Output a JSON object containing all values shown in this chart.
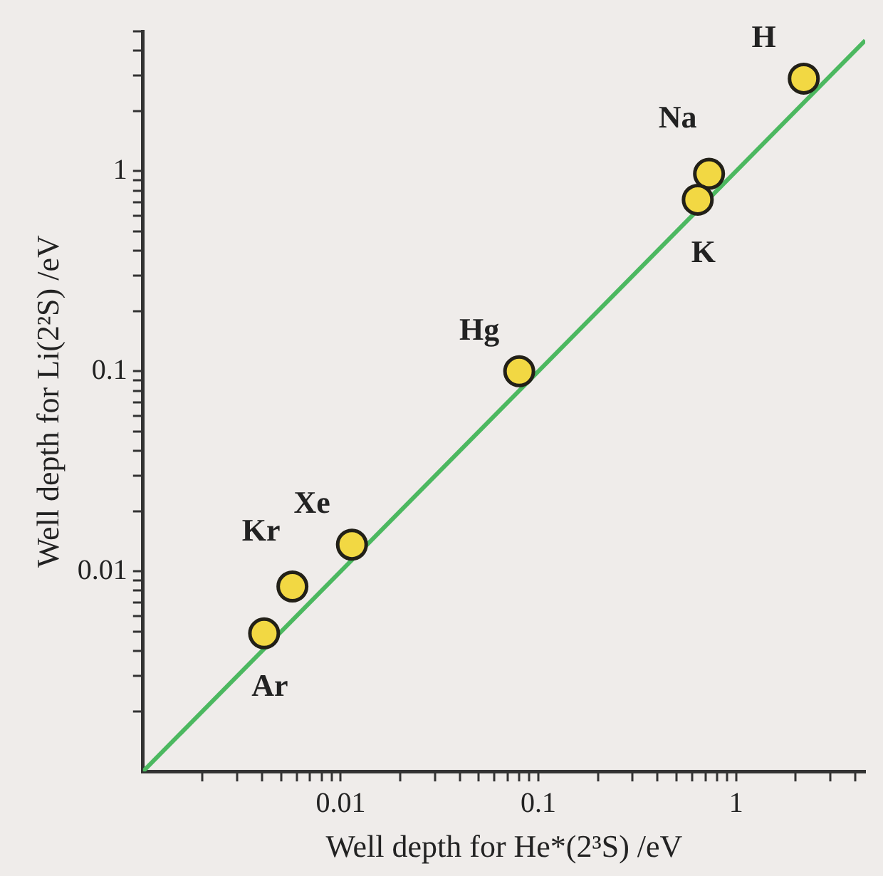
{
  "chart_data": {
    "type": "scatter",
    "xlabel": "Well depth for He*(2³S) /eV",
    "ylabel": "Well depth for Li(2²S) /eV",
    "log": "xy",
    "grid": false,
    "legend": false,
    "marker": "circle",
    "xlim": [
      0.001,
      4.5
    ],
    "ylim": [
      0.001,
      5
    ],
    "xticks": [
      {
        "value": 0.002,
        "label": null
      },
      {
        "value": 0.003,
        "label": null
      },
      {
        "value": 0.004,
        "label": null
      },
      {
        "value": 0.005,
        "label": null
      },
      {
        "value": 0.006,
        "label": null
      },
      {
        "value": 0.007,
        "label": null
      },
      {
        "value": 0.008,
        "label": null
      },
      {
        "value": 0.009,
        "label": null
      },
      0.01,
      {
        "value": 0.02,
        "label": null
      },
      {
        "value": 0.03,
        "label": null
      },
      {
        "value": 0.04,
        "label": null
      },
      {
        "value": 0.05,
        "label": null
      },
      {
        "value": 0.06,
        "label": null
      },
      {
        "value": 0.07,
        "label": null
      },
      {
        "value": 0.08,
        "label": null
      },
      {
        "value": 0.09,
        "label": null
      },
      0.1,
      {
        "value": 0.2,
        "label": null
      },
      {
        "value": 0.3,
        "label": null
      },
      {
        "value": 0.4,
        "label": null
      },
      {
        "value": 0.5,
        "label": null
      },
      {
        "value": 0.6,
        "label": null
      },
      {
        "value": 0.7,
        "label": null
      },
      {
        "value": 0.8,
        "label": null
      },
      {
        "value": 0.9,
        "label": null
      },
      1,
      {
        "value": 2,
        "label": null
      },
      {
        "value": 3,
        "label": null
      },
      {
        "value": 4,
        "label": null
      }
    ],
    "yticks": [
      {
        "value": 0.002,
        "label": null
      },
      {
        "value": 0.003,
        "label": null
      },
      {
        "value": 0.004,
        "label": null
      },
      {
        "value": 0.005,
        "label": null
      },
      {
        "value": 0.006,
        "label": null
      },
      {
        "value": 0.007,
        "label": null
      },
      {
        "value": 0.008,
        "label": null
      },
      {
        "value": 0.009,
        "label": null
      },
      0.01,
      {
        "value": 0.02,
        "label": null
      },
      {
        "value": 0.03,
        "label": null
      },
      {
        "value": 0.04,
        "label": null
      },
      {
        "value": 0.05,
        "label": null
      },
      {
        "value": 0.06,
        "label": null
      },
      {
        "value": 0.07,
        "label": null
      },
      {
        "value": 0.08,
        "label": null
      },
      {
        "value": 0.09,
        "label": null
      },
      0.1,
      {
        "value": 0.2,
        "label": null
      },
      {
        "value": 0.3,
        "label": null
      },
      {
        "value": 0.4,
        "label": null
      },
      {
        "value": 0.5,
        "label": null
      },
      {
        "value": 0.6,
        "label": null
      },
      {
        "value": 0.7,
        "label": null
      },
      {
        "value": 0.8,
        "label": null
      },
      {
        "value": 0.9,
        "label": null
      },
      1,
      {
        "value": 2,
        "label": null
      },
      {
        "value": 3,
        "label": null
      },
      {
        "value": 4,
        "label": null
      },
      {
        "value": 5,
        "label": null
      }
    ],
    "series": [
      {
        "type": "line",
        "color": "#4cb860",
        "marker": "none",
        "x": [
          0.001,
          4.5
        ],
        "values": [
          0.001,
          4.5
        ]
      },
      {
        "type": "scatter",
        "color": "#f2d843",
        "x": [
          2.2,
          0.73,
          0.64,
          0.08,
          0.0057,
          0.0114,
          0.0041
        ],
        "values": [
          2.9,
          0.97,
          0.72,
          0.1,
          0.0084,
          0.0136,
          0.0049
        ]
      }
    ],
    "annotations": [
      {
        "text": "H",
        "x": 2.2,
        "y": 2.9
      },
      {
        "text": "Na",
        "x": 0.73,
        "y": 0.97
      },
      {
        "text": "K",
        "x": 0.64,
        "y": 0.72
      },
      {
        "text": "Hg",
        "x": 0.08,
        "y": 0.1
      },
      {
        "text": "Kr",
        "x": 0.0057,
        "y": 0.0084
      },
      {
        "text": "Xe",
        "x": 0.0114,
        "y": 0.0136
      },
      {
        "text": "Ar",
        "x": 0.0041,
        "y": 0.0049
      }
    ]
  }
}
